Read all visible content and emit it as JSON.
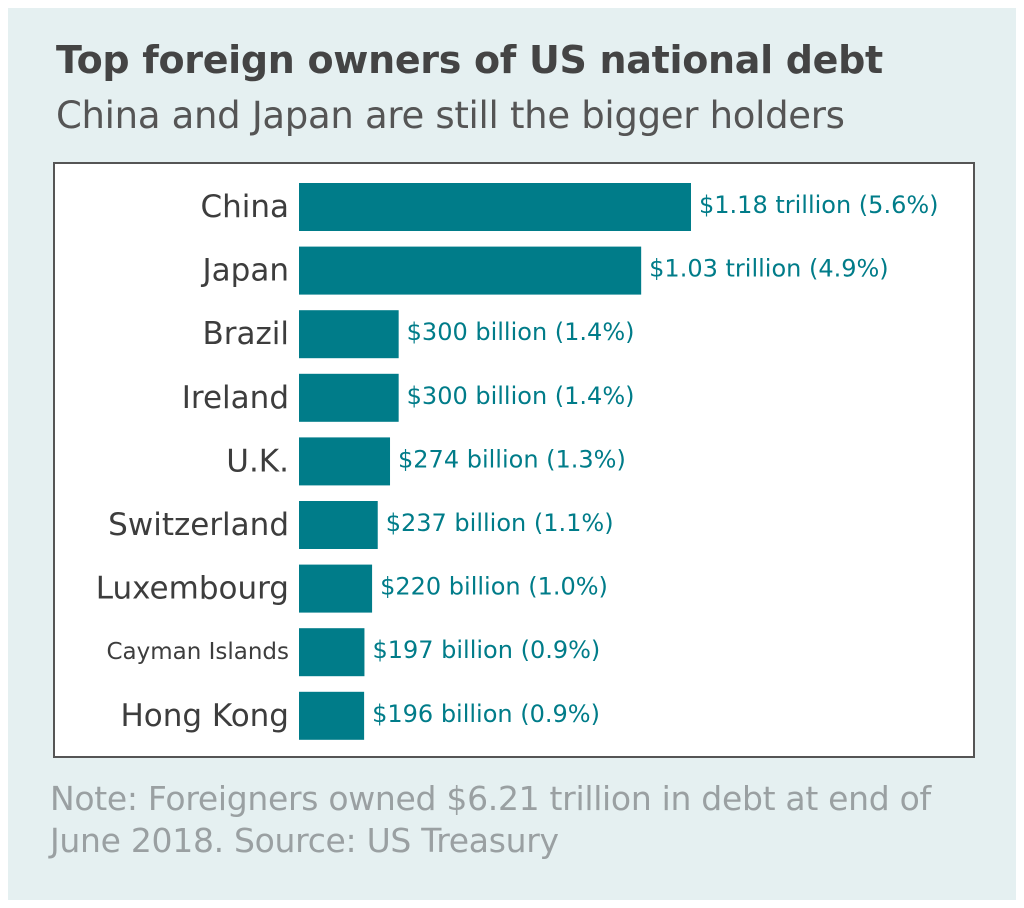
{
  "title": "Top foreign owners of US national debt",
  "subtitle": "China and Japan are still the bigger holders",
  "note": "Note: Foreigners owned $6.21 trillion in debt at end of June 2018. Source: US Treasury",
  "colors": {
    "bar": "#007c89",
    "value_label": "#007c89",
    "category_label": "#3d3d3d",
    "background": "#e5f0f1"
  },
  "chart_data": {
    "type": "bar",
    "orientation": "horizontal",
    "title": "Top foreign owners of US national debt",
    "subtitle": "China and Japan are still the bigger holders",
    "unit": "USD billions",
    "categories": [
      "China",
      "Japan",
      "Brazil",
      "Ireland",
      "U.K.",
      "Switzerland",
      "Luxembourg",
      "Cayman Islands",
      "Hong Kong"
    ],
    "values": [
      1180,
      1030,
      300,
      300,
      274,
      237,
      220,
      197,
      196
    ],
    "value_labels": [
      "$1.18 trillion (5.6%)",
      "$1.03 trillion (4.9%)",
      "$300 billion (1.4%)",
      "$300 billion (1.4%)",
      "$274 billion (1.3%)",
      "$237 billion (1.1%)",
      "$220 billion (1.0%)",
      "$197 billion (0.9%)",
      "$196 billion (0.9%)"
    ],
    "xlim": [
      0,
      1180
    ],
    "grid": false,
    "legend": "none"
  }
}
